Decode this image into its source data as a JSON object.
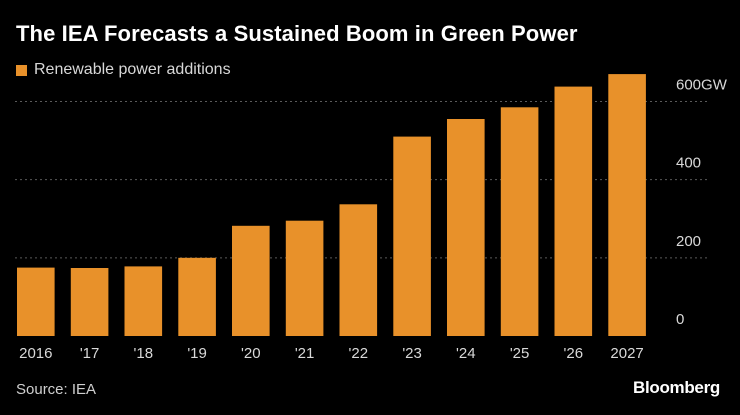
{
  "title": "The IEA Forecasts a Sustained Boom in Green Power",
  "source": "Source: IEA",
  "brand": "Bloomberg",
  "colors": {
    "bar": "#E8912A",
    "background": "#000000",
    "gridline": "#5a5a5a",
    "text": "#ffffff",
    "axis_text": "#d9d9d9"
  },
  "chart_data": {
    "type": "bar",
    "title": "The IEA Forecasts a Sustained Boom in Green Power",
    "xlabel": "",
    "ylabel": "",
    "ylim": [
      0,
      660
    ],
    "grid": true,
    "legend_position": "top-left",
    "y_axis_side": "right",
    "categories": [
      "2016",
      "'17",
      "'18",
      "'19",
      "'20",
      "'21",
      "'22",
      "'23",
      "'24",
      "'25",
      "'26",
      "2027"
    ],
    "series": [
      {
        "name": "Renewable power additions",
        "values": [
          175,
          174,
          178,
          200,
          282,
          295,
          337,
          510,
          555,
          585,
          638,
          670
        ]
      }
    ],
    "y_ticks": [
      {
        "value": 0,
        "label": "0"
      },
      {
        "value": 200,
        "label": "200"
      },
      {
        "value": 400,
        "label": "400"
      },
      {
        "value": 600,
        "label": "600GW"
      }
    ]
  }
}
